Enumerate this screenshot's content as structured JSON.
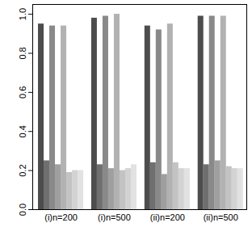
{
  "chart_data": {
    "type": "bar",
    "categories": [
      "(i)n=200",
      "(i)n=500",
      "(ii)n=200",
      "(ii)n=500"
    ],
    "series": [
      {
        "color": "#4d4d4d",
        "values": [
          0.95,
          0.98,
          0.94,
          0.99
        ]
      },
      {
        "color": "#6f6f6f",
        "values": [
          0.25,
          0.23,
          0.24,
          0.23
        ]
      },
      {
        "color": "#898989",
        "values": [
          0.94,
          0.99,
          0.92,
          0.99
        ]
      },
      {
        "color": "#9f9f9f",
        "values": [
          0.23,
          0.21,
          0.18,
          0.25
        ]
      },
      {
        "color": "#b2b2b2",
        "values": [
          0.94,
          1.0,
          0.95,
          0.99
        ]
      },
      {
        "color": "#c3c3c3",
        "values": [
          0.19,
          0.2,
          0.24,
          0.22
        ]
      },
      {
        "color": "#d3d3d3",
        "values": [
          0.2,
          0.21,
          0.21,
          0.21
        ]
      },
      {
        "color": "#e2e2e2",
        "values": [
          0.2,
          0.23,
          0.21,
          0.21
        ]
      }
    ],
    "ylim": [
      0,
      1.05
    ],
    "yticks": [
      {
        "value": 0,
        "label": "0.0"
      },
      0.2,
      0.4,
      0.6,
      0.8,
      {
        "value": 1,
        "label": "1.0"
      }
    ]
  }
}
